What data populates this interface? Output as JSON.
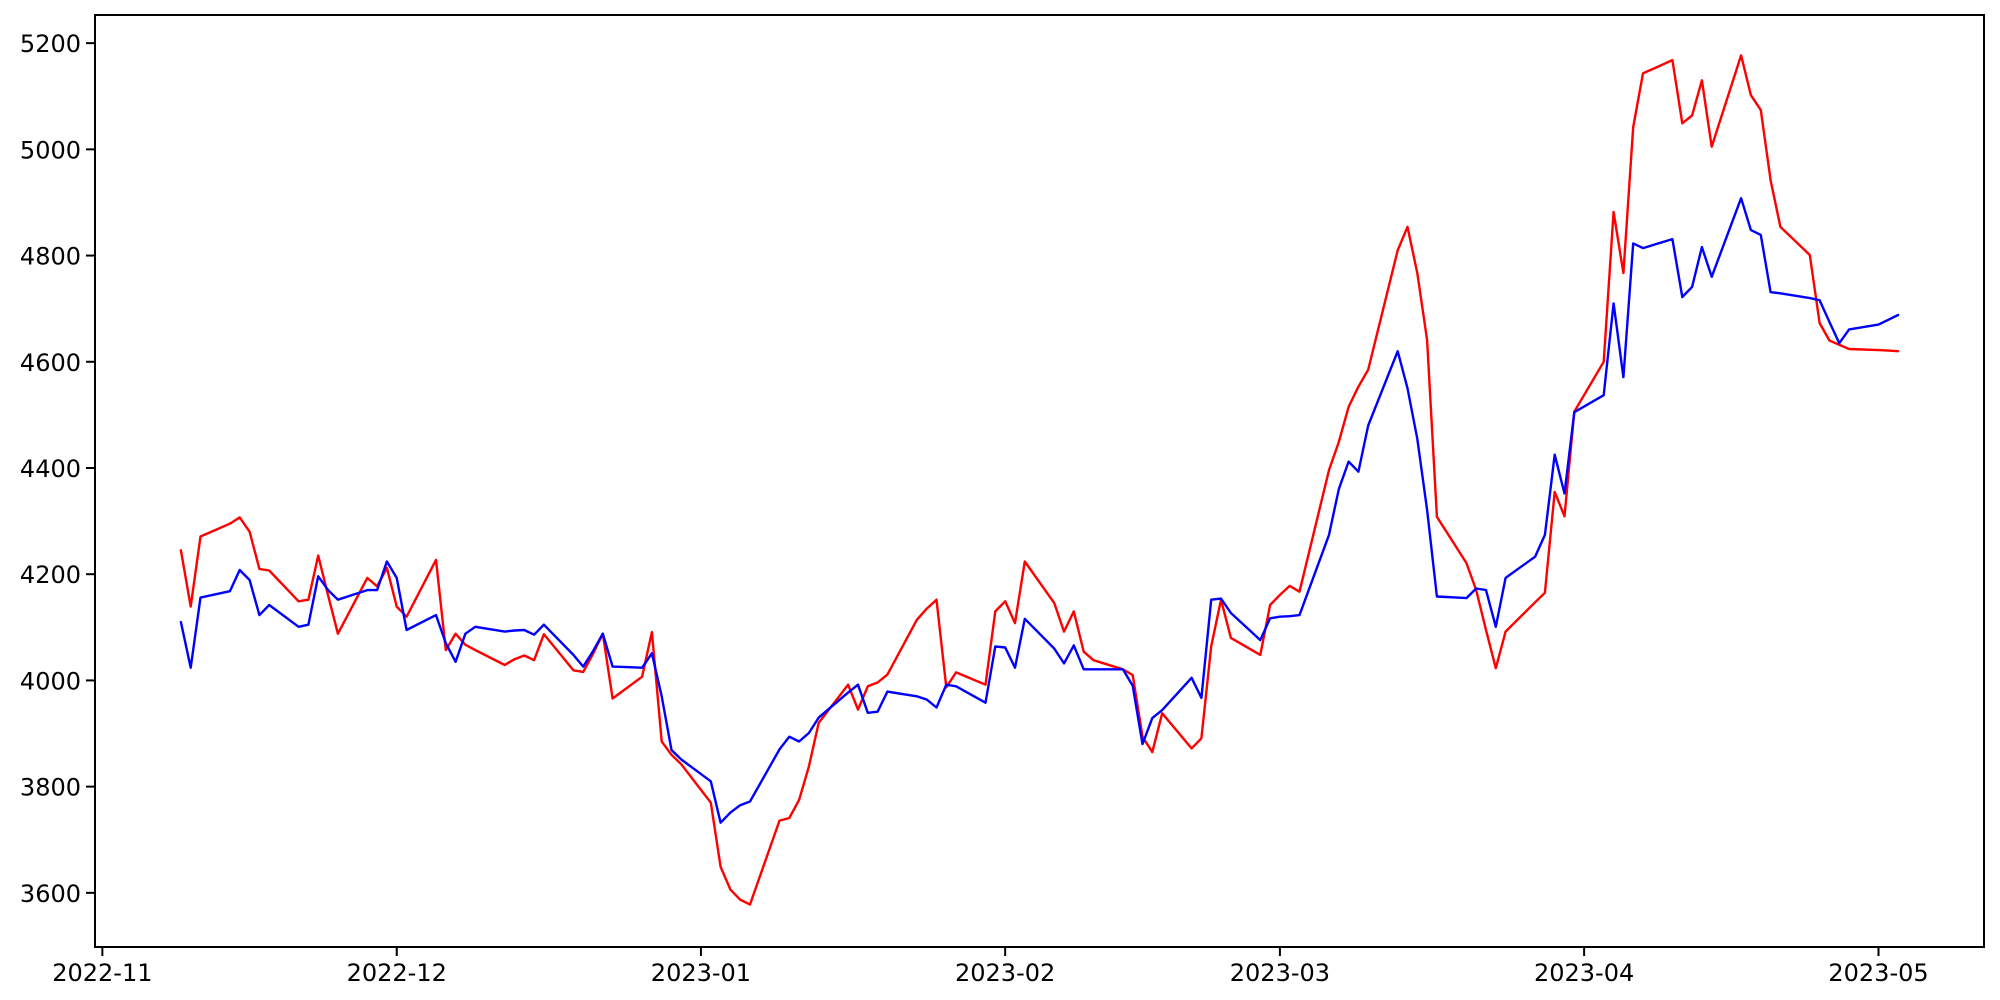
{
  "chart_data": {
    "type": "line",
    "title": "",
    "xlabel": "",
    "ylabel": "",
    "legend": null,
    "grid": false,
    "background_color": "#ffffff",
    "axis_color": "#000000",
    "tick_font_size": 24,
    "x_tick_labels": [
      "2022-11",
      "2022-12",
      "2023-01",
      "2023-02",
      "2023-03",
      "2023-04",
      "2023-05"
    ],
    "x_tick_dates": [
      "2022-11-01",
      "2022-12-01",
      "2023-01-01",
      "2023-02-01",
      "2023-03-01",
      "2023-04-01",
      "2023-05-01"
    ],
    "y_ticks": [
      3600,
      3800,
      4000,
      4200,
      4400,
      4600,
      4800,
      5000,
      5200
    ],
    "ylim": [
      3498,
      5253
    ],
    "xlim_days_from_2022_11_01": [
      -0.75,
      191.75
    ],
    "x": [
      "2022-11-09",
      "2022-11-10",
      "2022-11-11",
      "2022-11-14",
      "2022-11-15",
      "2022-11-16",
      "2022-11-17",
      "2022-11-18",
      "2022-11-21",
      "2022-11-22",
      "2022-11-23",
      "2022-11-24",
      "2022-11-25",
      "2022-11-28",
      "2022-11-29",
      "2022-11-30",
      "2022-12-01",
      "2022-12-02",
      "2022-12-05",
      "2022-12-06",
      "2022-12-07",
      "2022-12-08",
      "2022-12-09",
      "2022-12-12",
      "2022-12-13",
      "2022-12-14",
      "2022-12-15",
      "2022-12-16",
      "2022-12-19",
      "2022-12-20",
      "2022-12-21",
      "2022-12-22",
      "2022-12-23",
      "2022-12-26",
      "2022-12-27",
      "2022-12-28",
      "2022-12-29",
      "2022-12-30",
      "2023-01-02",
      "2023-01-03",
      "2023-01-04",
      "2023-01-05",
      "2023-01-06",
      "2023-01-09",
      "2023-01-10",
      "2023-01-11",
      "2023-01-12",
      "2023-01-13",
      "2023-01-16",
      "2023-01-17",
      "2023-01-18",
      "2023-01-19",
      "2023-01-20",
      "2023-01-23",
      "2023-01-24",
      "2023-01-25",
      "2023-01-26",
      "2023-01-27",
      "2023-01-30",
      "2023-01-31",
      "2023-02-01",
      "2023-02-02",
      "2023-02-03",
      "2023-02-06",
      "2023-02-07",
      "2023-02-08",
      "2023-02-09",
      "2023-02-10",
      "2023-02-13",
      "2023-02-14",
      "2023-02-15",
      "2023-02-16",
      "2023-02-17",
      "2023-02-20",
      "2023-02-21",
      "2023-02-22",
      "2023-02-23",
      "2023-02-24",
      "2023-02-27",
      "2023-02-28",
      "2023-03-01",
      "2023-03-02",
      "2023-03-03",
      "2023-03-06",
      "2023-03-07",
      "2023-03-08",
      "2023-03-09",
      "2023-03-10",
      "2023-03-13",
      "2023-03-14",
      "2023-03-15",
      "2023-03-16",
      "2023-03-17",
      "2023-03-20",
      "2023-03-21",
      "2023-03-22",
      "2023-03-23",
      "2023-03-24",
      "2023-03-27",
      "2023-03-28",
      "2023-03-29",
      "2023-03-30",
      "2023-03-31",
      "2023-04-03",
      "2023-04-04",
      "2023-04-05",
      "2023-04-06",
      "2023-04-07",
      "2023-04-10",
      "2023-04-11",
      "2023-04-12",
      "2023-04-13",
      "2023-04-14",
      "2023-04-17",
      "2023-04-18",
      "2023-04-19",
      "2023-04-20",
      "2023-04-21",
      "2023-04-24",
      "2023-04-25",
      "2023-04-26",
      "2023-04-27",
      "2023-04-28",
      "2023-05-01",
      "2023-05-02",
      "2023-05-03"
    ],
    "series": [
      {
        "name": "red-series",
        "color": "#ff0000",
        "line_width": 2.4,
        "values": [
          4245,
          4139,
          4271,
          4295,
          4307,
          4280,
          4210,
          4207,
          4149,
          4152,
          4235,
          4160,
          4088,
          4193,
          4177,
          4212,
          4139,
          4120,
          4227,
          4057,
          4088,
          4067,
          4057,
          4029,
          4040,
          4047,
          4038,
          4087,
          4019,
          4016,
          4050,
          4088,
          3966,
          4007,
          4091,
          3885,
          3860,
          3842,
          3770,
          3649,
          3606,
          3587,
          3578,
          3736,
          3741,
          3775,
          3838,
          3920,
          3992,
          3945,
          3989,
          3996,
          4011,
          4114,
          4135,
          4152,
          3987,
          4015,
          3992,
          4130,
          4149,
          4108,
          4224,
          4146,
          4092,
          4130,
          4054,
          4038,
          4021,
          4010,
          3894,
          3865,
          3938,
          3872,
          3891,
          4064,
          4152,
          4080,
          4048,
          4142,
          4161,
          4178,
          4167,
          4396,
          4449,
          4515,
          4553,
          4585,
          4810,
          4854,
          4767,
          4641,
          4308,
          4221,
          4170,
          4095,
          4023,
          4092,
          4147,
          4165,
          4355,
          4309,
          4506,
          4600,
          4882,
          4767,
          5042,
          5143,
          5168,
          5049,
          5064,
          5130,
          5005,
          5177,
          5102,
          5074,
          4942,
          4854,
          4801,
          4673,
          4640,
          4632,
          4624,
          4622,
          4621,
          4620
        ]
      },
      {
        "name": "blue-series",
        "color": "#0000ff",
        "line_width": 2.4,
        "values": [
          4110,
          4024,
          4156,
          4168,
          4208,
          4189,
          4123,
          4142,
          4101,
          4105,
          4196,
          4170,
          4152,
          4170,
          4170,
          4224,
          4193,
          4095,
          4123,
          4070,
          4035,
          4088,
          4101,
          4092,
          4094,
          4095,
          4086,
          4105,
          4048,
          4026,
          4055,
          4088,
          4026,
          4024,
          4051,
          3970,
          3869,
          3851,
          3810,
          3732,
          3751,
          3765,
          3772,
          3870,
          3894,
          3885,
          3901,
          3930,
          3977,
          3992,
          3939,
          3941,
          3979,
          3970,
          3964,
          3949,
          3992,
          3989,
          3958,
          4064,
          4062,
          4024,
          4116,
          4060,
          4032,
          4066,
          4021,
          4021,
          4021,
          3990,
          3880,
          3929,
          3944,
          4005,
          3967,
          4152,
          4154,
          4127,
          4076,
          4117,
          4120,
          4121,
          4123,
          4274,
          4360,
          4412,
          4393,
          4480,
          4620,
          4550,
          4455,
          4321,
          4158,
          4155,
          4173,
          4170,
          4101,
          4193,
          4233,
          4274,
          4425,
          4352,
          4505,
          4537,
          4710,
          4571,
          4823,
          4814,
          4831,
          4722,
          4741,
          4816,
          4760,
          4908,
          4848,
          4839,
          4731,
          4729,
          4720,
          4716,
          4675,
          4635,
          4661,
          4670,
          4679,
          4688
        ]
      }
    ]
  }
}
